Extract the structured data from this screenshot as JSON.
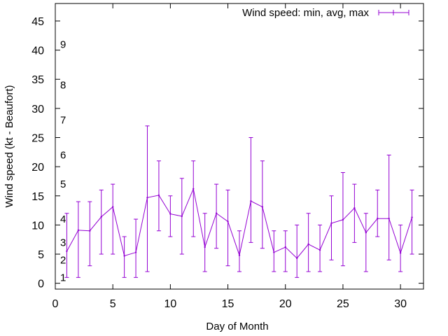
{
  "chart_data": {
    "type": "line",
    "title": "",
    "xlabel": "Day of Month",
    "ylabel": "Wind speed (kt - Beaufort)",
    "xlim": [
      0,
      32
    ],
    "ylim": [
      -1,
      48
    ],
    "xticks": [
      "0",
      "5",
      "10",
      "15",
      "20",
      "25",
      "30"
    ],
    "yticks": [
      "0",
      "5",
      "10",
      "15",
      "20",
      "25",
      "30",
      "35",
      "40",
      "45"
    ],
    "grid": false,
    "legend_position": "top-right",
    "series_color": "#9400d3",
    "series": [
      {
        "name": "Wind speed: min, avg, max",
        "x": [
          1,
          2,
          3,
          4,
          5,
          6,
          7,
          8,
          9,
          10,
          11,
          12,
          13,
          14,
          15,
          16,
          17,
          18,
          19,
          20,
          21,
          22,
          23,
          24,
          25,
          26,
          27,
          28,
          29,
          30,
          31
        ],
        "avg": [
          5.5,
          9.1,
          9.0,
          11.4,
          13.1,
          4.7,
          5.3,
          14.7,
          15.1,
          11.9,
          11.5,
          16.2,
          6.2,
          12.0,
          10.6,
          4.8,
          14.1,
          13.1,
          5.3,
          6.2,
          4.3,
          6.7,
          5.7,
          10.3,
          10.9,
          12.9,
          8.7,
          11.1,
          11.1,
          5.2,
          11.3
        ],
        "min": [
          1,
          1,
          3,
          5,
          5,
          1,
          1,
          2,
          9,
          8,
          5,
          8,
          2,
          6,
          3,
          2,
          7,
          6,
          2,
          2,
          1,
          2,
          2,
          4,
          3,
          7,
          2,
          8,
          4,
          2,
          5
        ],
        "max": [
          12,
          14,
          14,
          16,
          17,
          8,
          11,
          27,
          21,
          15,
          18,
          21,
          12,
          17,
          16,
          9,
          25,
          21,
          9,
          9,
          10,
          12,
          10,
          15,
          19,
          17,
          12,
          16,
          22,
          10,
          16
        ]
      }
    ],
    "beaufort_labels": [
      {
        "text": "1",
        "y": 1
      },
      {
        "text": "2",
        "y": 4
      },
      {
        "text": "3",
        "y": 7
      },
      {
        "text": "4",
        "y": 11
      },
      {
        "text": "5",
        "y": 17
      },
      {
        "text": "6",
        "y": 22
      },
      {
        "text": "7",
        "y": 28
      },
      {
        "text": "8",
        "y": 34
      },
      {
        "text": "9",
        "y": 41
      }
    ]
  }
}
